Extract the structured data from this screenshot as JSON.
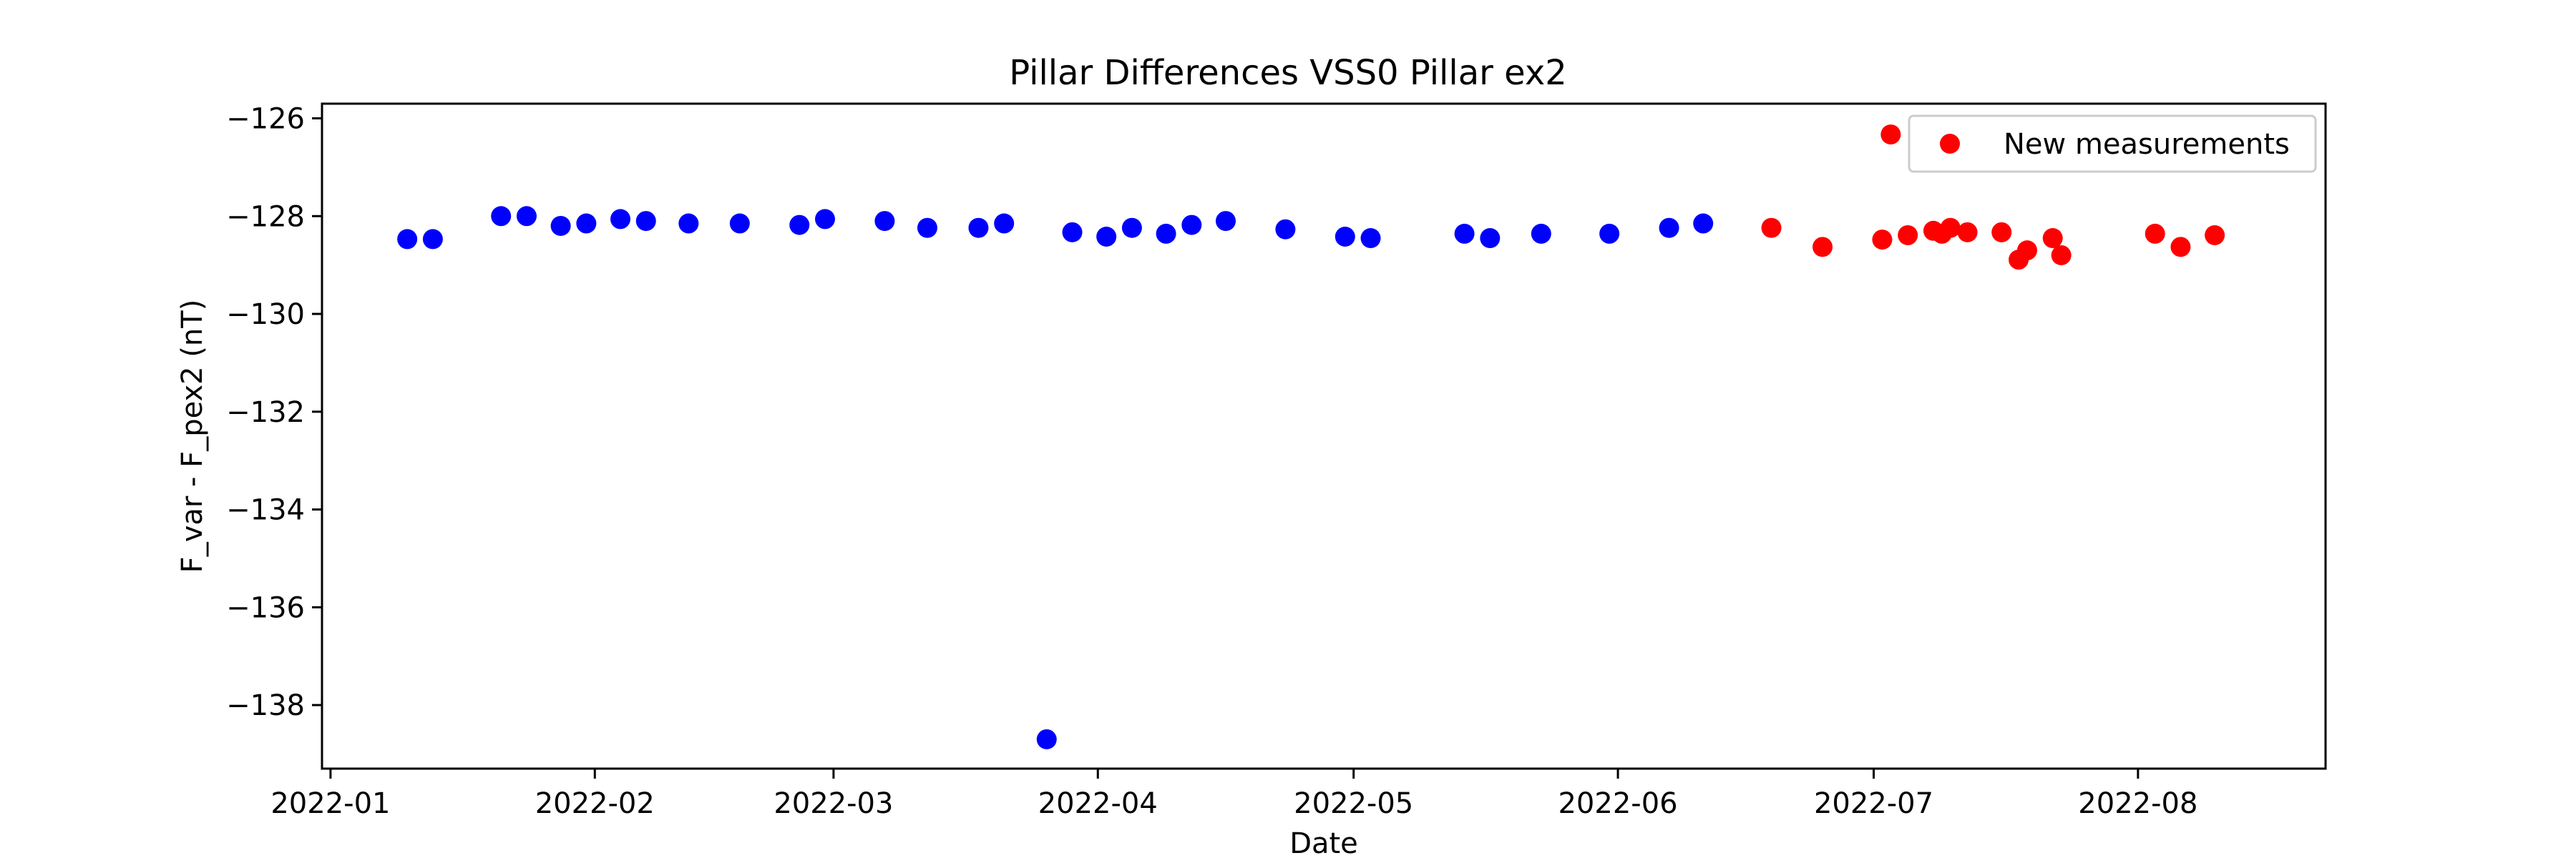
{
  "chart_data": {
    "type": "scatter",
    "title": "Pillar Differences VSS0 Pillar ex2",
    "xlabel": "Date",
    "ylabel": "F_var - F_pex2 (nT)",
    "x_axis": "date",
    "xlim": [
      "2021-12-31",
      "2022-08-23"
    ],
    "ylim": [
      -139.3,
      -125.7
    ],
    "x_ticks": [
      "2022-01-01",
      "2022-02-01",
      "2022-03-01",
      "2022-04-01",
      "2022-05-01",
      "2022-06-01",
      "2022-07-01",
      "2022-08-01"
    ],
    "x_tick_labels": [
      "2022-01",
      "2022-02",
      "2022-03",
      "2022-04",
      "2022-05",
      "2022-06",
      "2022-07",
      "2022-08"
    ],
    "y_ticks": [
      -138,
      -136,
      -134,
      -132,
      -130,
      -128,
      -126
    ],
    "y_tick_labels": [
      "−138",
      "−136",
      "−134",
      "−132",
      "−130",
      "−128",
      "−126"
    ],
    "grid": false,
    "legend_position": "top-right",
    "series": [
      {
        "color": "#0000ff",
        "points": [
          {
            "x": "2022-01-10",
            "y": -128.47
          },
          {
            "x": "2022-01-13",
            "y": -128.47
          },
          {
            "x": "2022-01-21",
            "y": -128.0
          },
          {
            "x": "2022-01-24",
            "y": -128.0
          },
          {
            "x": "2022-01-28",
            "y": -128.2
          },
          {
            "x": "2022-01-31",
            "y": -128.15
          },
          {
            "x": "2022-02-04",
            "y": -128.06
          },
          {
            "x": "2022-02-07",
            "y": -128.1
          },
          {
            "x": "2022-02-12",
            "y": -128.15
          },
          {
            "x": "2022-02-18",
            "y": -128.15
          },
          {
            "x": "2022-02-25",
            "y": -128.18
          },
          {
            "x": "2022-02-28",
            "y": -128.06
          },
          {
            "x": "2022-03-07",
            "y": -128.1
          },
          {
            "x": "2022-03-12",
            "y": -128.24
          },
          {
            "x": "2022-03-18",
            "y": -128.24
          },
          {
            "x": "2022-03-21",
            "y": -128.15
          },
          {
            "x": "2022-03-26",
            "y": -138.7
          },
          {
            "x": "2022-03-29",
            "y": -128.33
          },
          {
            "x": "2022-04-02",
            "y": -128.42
          },
          {
            "x": "2022-04-05",
            "y": -128.24
          },
          {
            "x": "2022-04-09",
            "y": -128.36
          },
          {
            "x": "2022-04-12",
            "y": -128.18
          },
          {
            "x": "2022-04-16",
            "y": -128.1
          },
          {
            "x": "2022-04-23",
            "y": -128.27
          },
          {
            "x": "2022-04-30",
            "y": -128.42
          },
          {
            "x": "2022-05-03",
            "y": -128.45
          },
          {
            "x": "2022-05-14",
            "y": -128.36
          },
          {
            "x": "2022-05-17",
            "y": -128.45
          },
          {
            "x": "2022-05-23",
            "y": -128.36
          },
          {
            "x": "2022-05-31",
            "y": -128.36
          },
          {
            "x": "2022-06-07",
            "y": -128.24
          },
          {
            "x": "2022-06-11",
            "y": -128.15
          }
        ]
      },
      {
        "name": "New measurements",
        "color": "#ff0000",
        "points": [
          {
            "x": "2022-06-19",
            "y": -128.24
          },
          {
            "x": "2022-06-25",
            "y": -128.63
          },
          {
            "x": "2022-07-02",
            "y": -128.48
          },
          {
            "x": "2022-07-03",
            "y": -126.33
          },
          {
            "x": "2022-07-05",
            "y": -128.39
          },
          {
            "x": "2022-07-08",
            "y": -128.3
          },
          {
            "x": "2022-07-09",
            "y": -128.36
          },
          {
            "x": "2022-07-10",
            "y": -128.24
          },
          {
            "x": "2022-07-12",
            "y": -128.33
          },
          {
            "x": "2022-07-16",
            "y": -128.33
          },
          {
            "x": "2022-07-18",
            "y": -128.89
          },
          {
            "x": "2022-07-19",
            "y": -128.7
          },
          {
            "x": "2022-07-22",
            "y": -128.45
          },
          {
            "x": "2022-07-23",
            "y": -128.8
          },
          {
            "x": "2022-08-03",
            "y": -128.36
          },
          {
            "x": "2022-08-06",
            "y": -128.63
          },
          {
            "x": "2022-08-10",
            "y": -128.39
          }
        ]
      }
    ]
  }
}
